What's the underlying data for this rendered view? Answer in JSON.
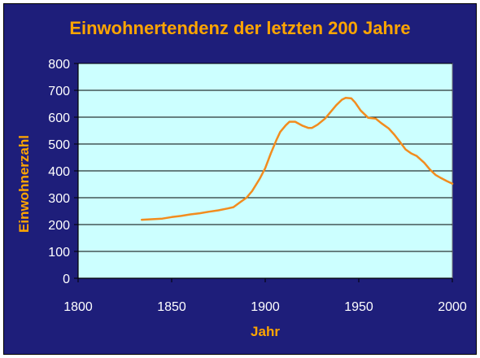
{
  "chart_data": {
    "type": "line",
    "title": "Einwohnertendenz der letzten 200 Jahre",
    "xlabel": "Jahr",
    "ylabel": "Einwohnerzahl",
    "xlim": [
      1800,
      2000
    ],
    "ylim": [
      0,
      800
    ],
    "xticks": [
      1800,
      1850,
      1900,
      1950,
      2000
    ],
    "yticks": [
      0,
      100,
      200,
      300,
      400,
      500,
      600,
      700,
      800
    ],
    "grid": true,
    "legend": "none",
    "series": [
      {
        "color": "#f28c1e",
        "points": [
          [
            1834,
            218
          ],
          [
            1840,
            220
          ],
          [
            1845,
            222
          ],
          [
            1850,
            228
          ],
          [
            1855,
            232
          ],
          [
            1860,
            238
          ],
          [
            1865,
            242
          ],
          [
            1870,
            248
          ],
          [
            1875,
            253
          ],
          [
            1880,
            260
          ],
          [
            1883,
            265
          ],
          [
            1887,
            285
          ],
          [
            1890,
            300
          ],
          [
            1893,
            325
          ],
          [
            1897,
            370
          ],
          [
            1900,
            410
          ],
          [
            1903,
            465
          ],
          [
            1906,
            515
          ],
          [
            1908,
            545
          ],
          [
            1911,
            570
          ],
          [
            1913,
            583
          ],
          [
            1916,
            583
          ],
          [
            1920,
            568
          ],
          [
            1923,
            560
          ],
          [
            1925,
            560
          ],
          [
            1928,
            572
          ],
          [
            1932,
            595
          ],
          [
            1935,
            620
          ],
          [
            1938,
            645
          ],
          [
            1941,
            665
          ],
          [
            1943,
            672
          ],
          [
            1946,
            670
          ],
          [
            1948,
            655
          ],
          [
            1951,
            625
          ],
          [
            1955,
            598
          ],
          [
            1959,
            595
          ],
          [
            1962,
            578
          ],
          [
            1966,
            558
          ],
          [
            1969,
            535
          ],
          [
            1972,
            508
          ],
          [
            1975,
            480
          ],
          [
            1978,
            465
          ],
          [
            1981,
            455
          ],
          [
            1985,
            430
          ],
          [
            1988,
            405
          ],
          [
            1991,
            385
          ],
          [
            1994,
            373
          ],
          [
            1997,
            362
          ],
          [
            2000,
            352
          ]
        ]
      }
    ],
    "colors": {
      "frame": "#1e1e7a",
      "plot_area": "#ccffff",
      "gridline": "#000000",
      "title_text": "#ffa500",
      "tick_text": "#ffffff",
      "line": "#f28c1e"
    }
  }
}
